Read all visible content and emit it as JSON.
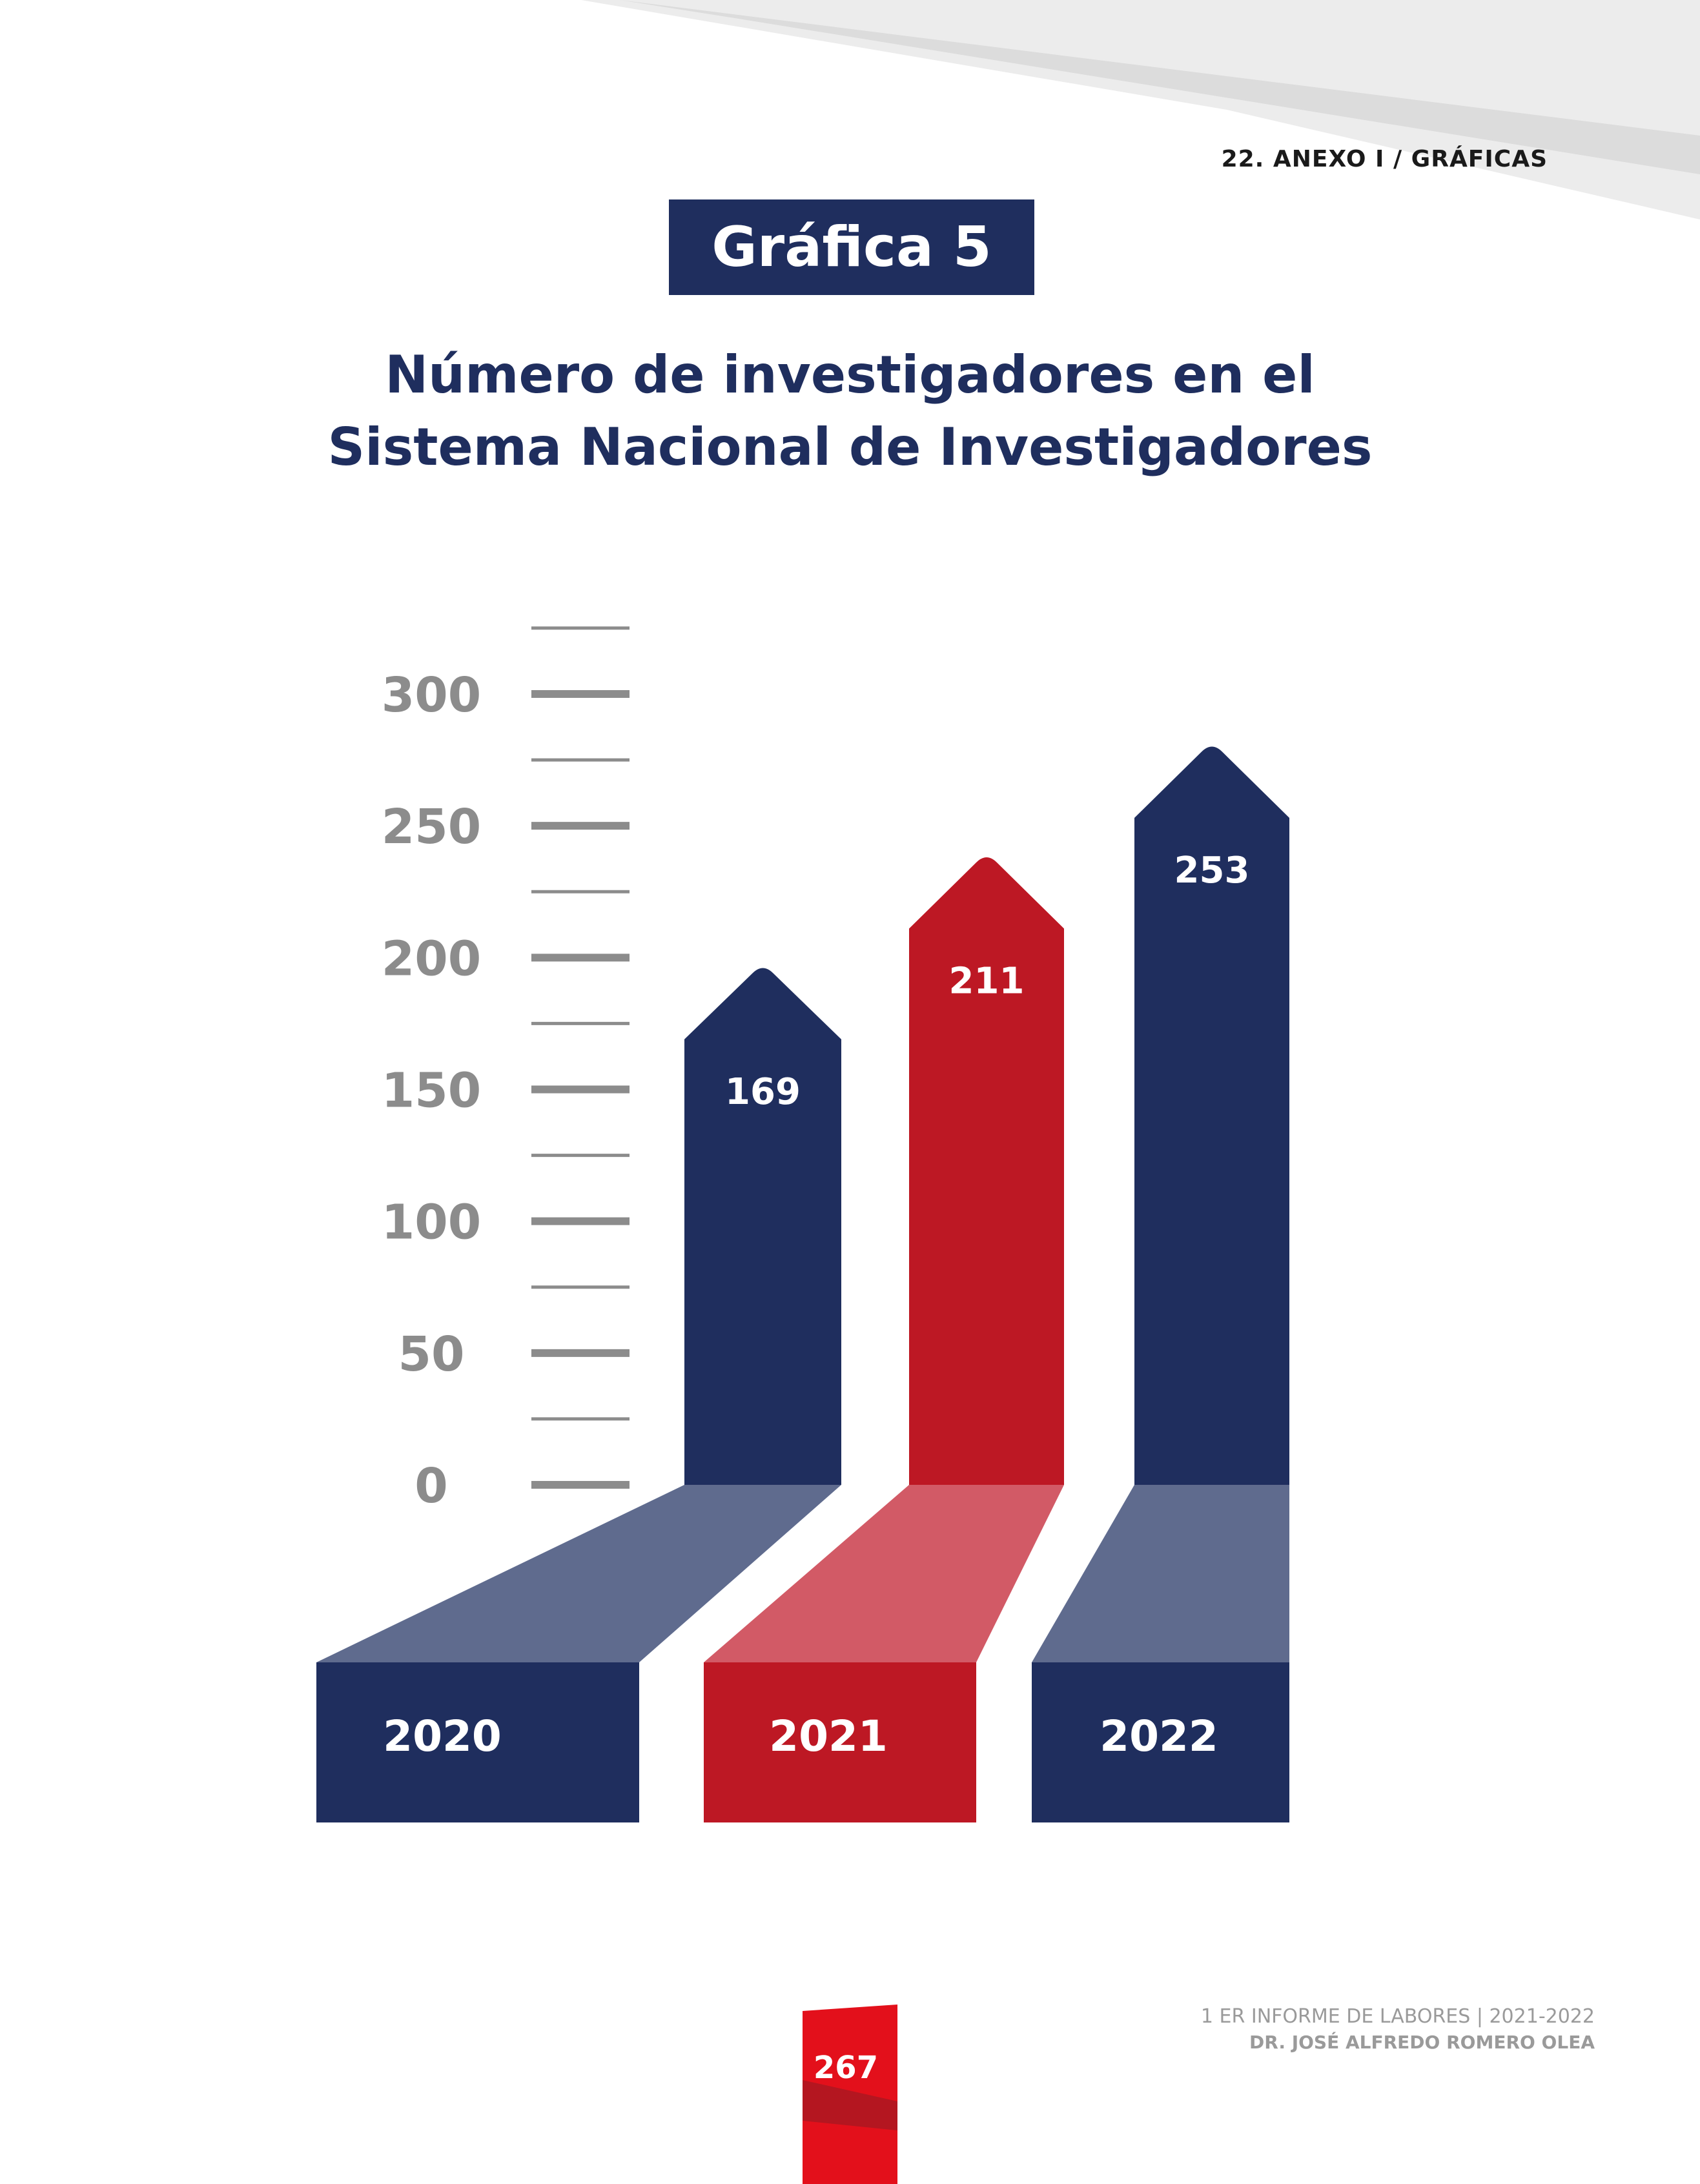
{
  "header": {
    "section": "22.  ANEXO I / GRÁFICAS"
  },
  "badge": {
    "label": "Gráfica 5"
  },
  "title_lines": [
    "Número de investigadores en el",
    "Sistema Nacional de Investigadores"
  ],
  "chart_data": {
    "type": "bar",
    "title": "Número de investigadores en el Sistema Nacional de Investigadores",
    "categories": [
      "2020",
      "2021",
      "2022"
    ],
    "values": [
      169,
      211,
      253
    ],
    "value_labels": [
      "169",
      "211",
      "253"
    ],
    "ylim": [
      0,
      300
    ],
    "yticks": [
      0,
      50,
      100,
      150,
      200,
      250,
      300
    ],
    "ytick_labels": [
      "0",
      "50",
      "100",
      "150",
      "200",
      "250",
      "300"
    ],
    "grid": false,
    "legend": "none",
    "colors": {
      "navy": "#1f2e5e",
      "red": "#bd1824",
      "navy_light": "#5f6b8e",
      "red_light": "#d25a66",
      "axis": "#8c8c8c"
    }
  },
  "footer": {
    "page_number": "267",
    "report": "1 ER INFORME DE LABORES | 2021-2022",
    "author": "DR. JOSÉ ALFREDO ROMERO OLEA"
  },
  "decor_colors": {
    "page_red": "#e3101b",
    "page_red_dark": "#b41620",
    "swoosh": "#e9e9e9"
  }
}
